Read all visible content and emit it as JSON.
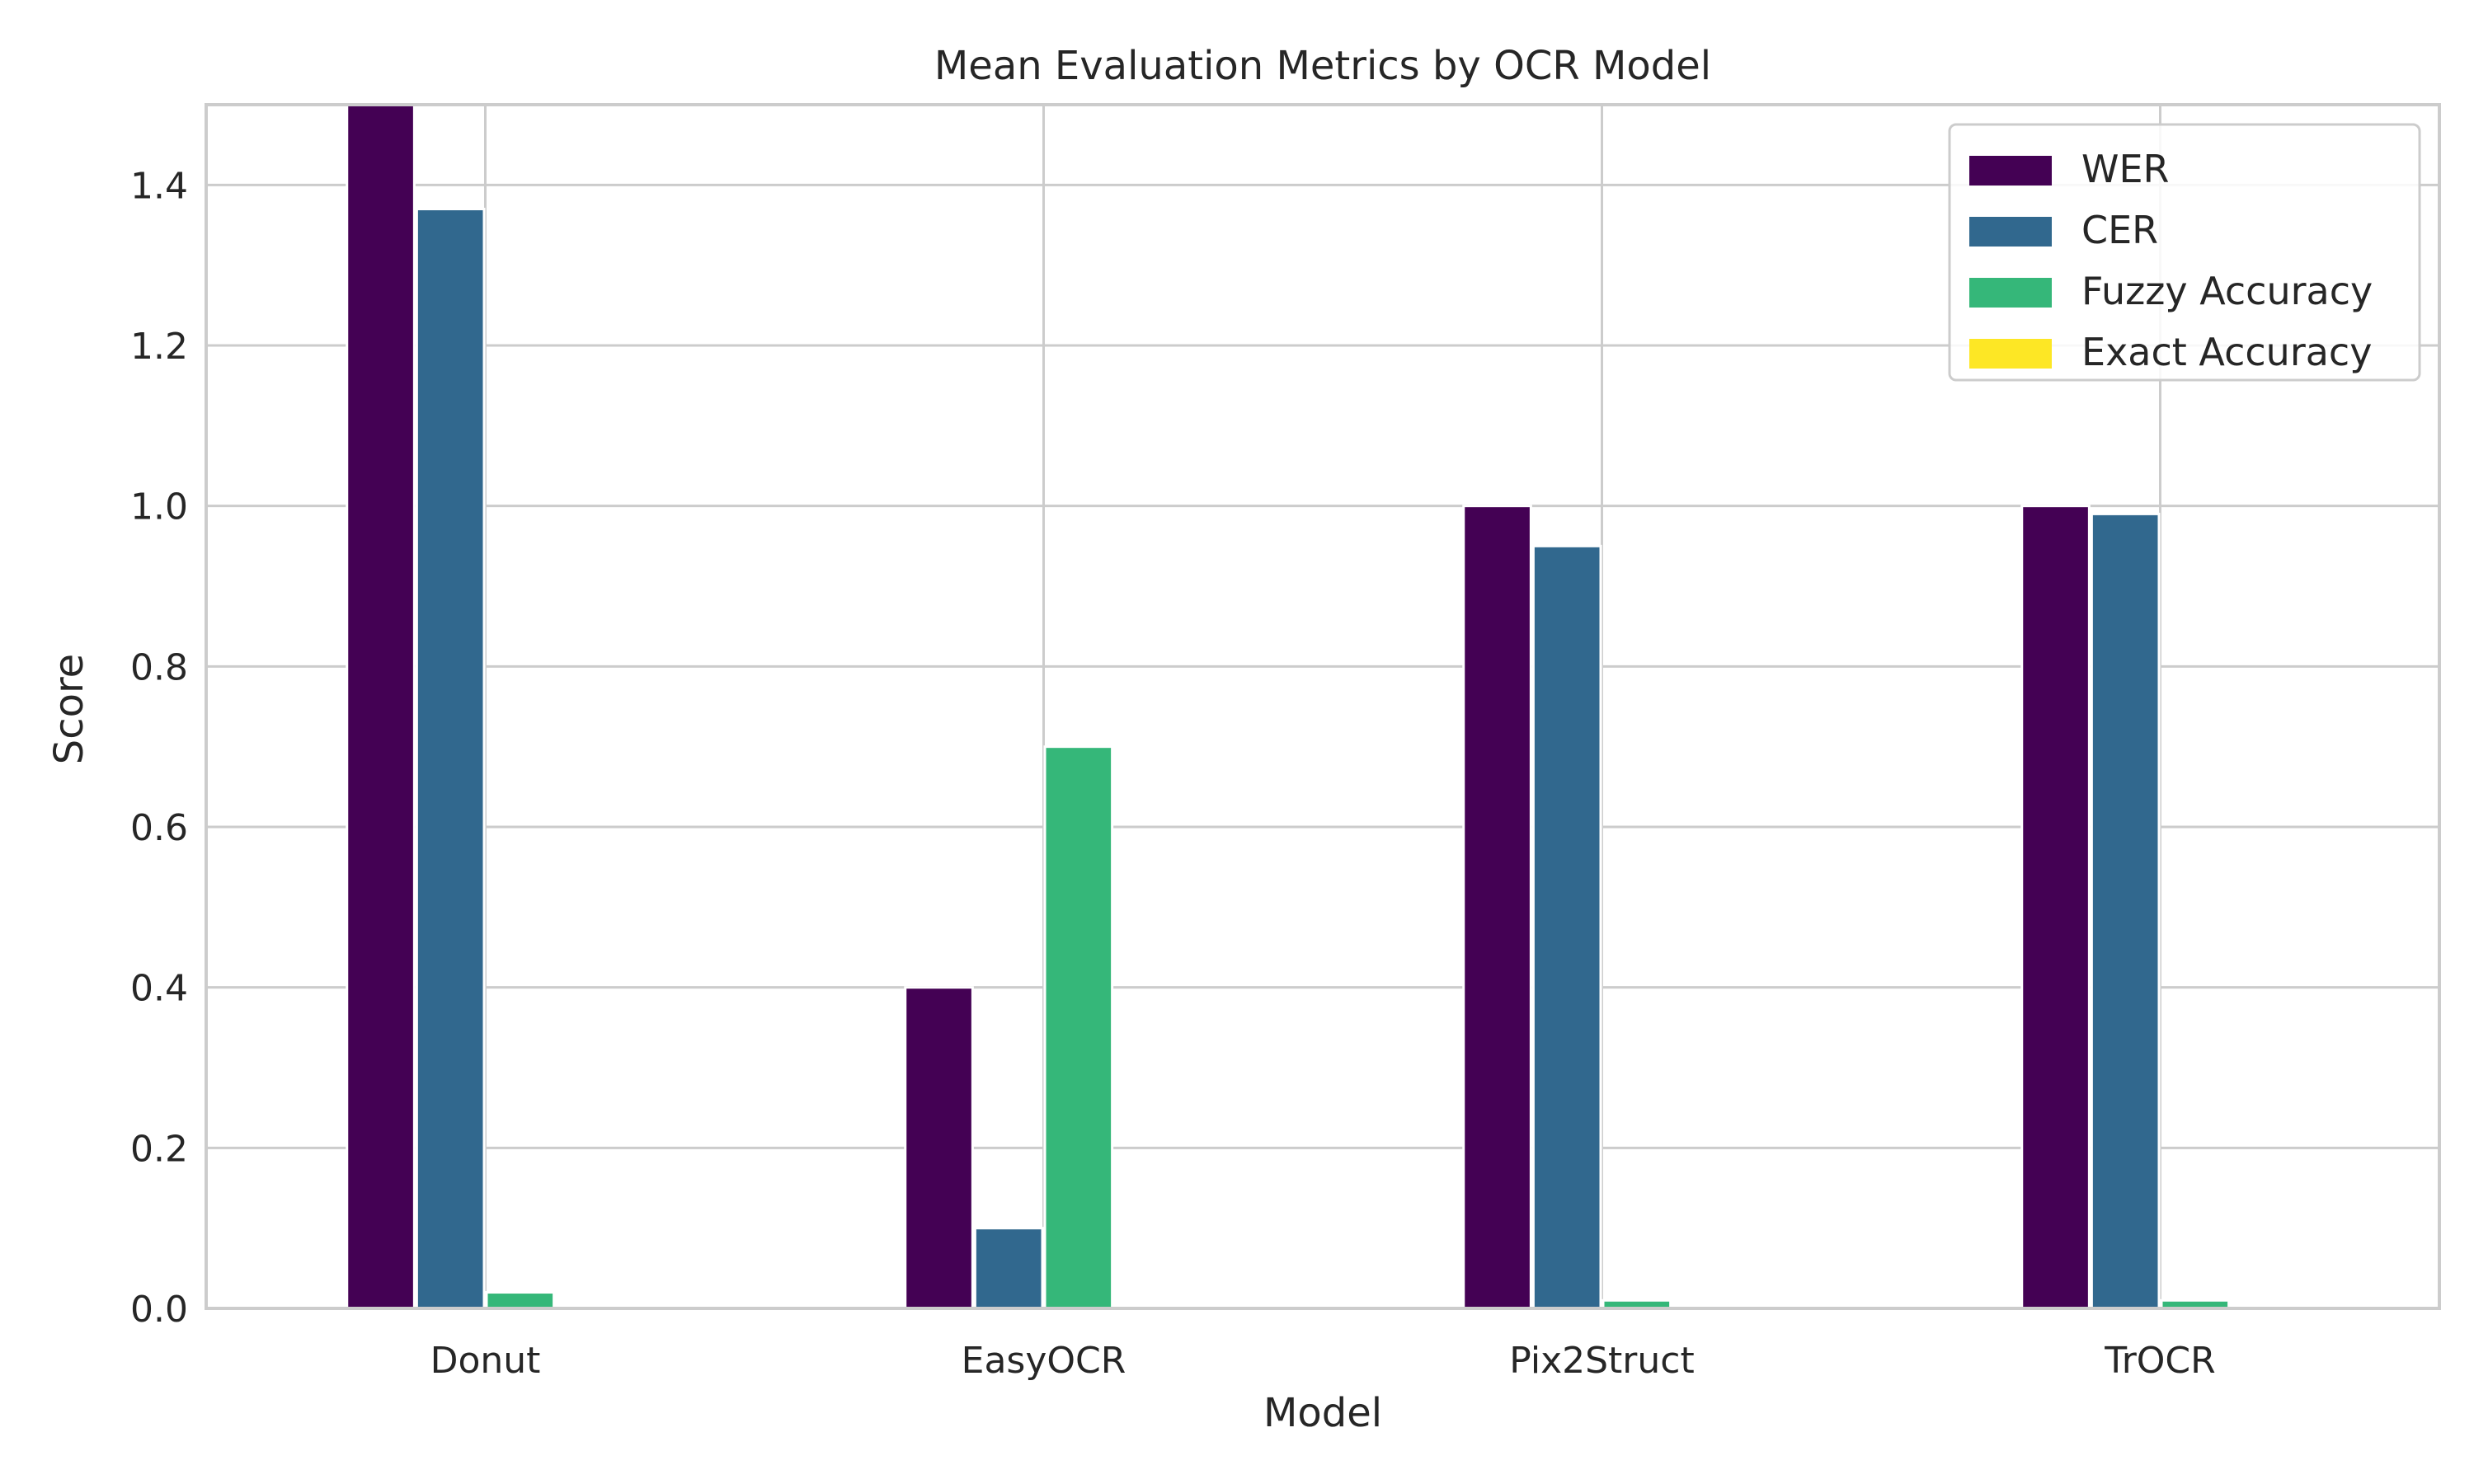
{
  "chart_data": {
    "type": "bar",
    "title": "Mean Evaluation Metrics by OCR Model",
    "xlabel": "Model",
    "ylabel": "Score",
    "categories": [
      "Donut",
      "EasyOCR",
      "Pix2Struct",
      "TrOCR"
    ],
    "series": [
      {
        "name": "WER",
        "color": "#440154",
        "values": [
          1.5,
          0.4,
          1.0,
          1.0
        ]
      },
      {
        "name": "CER",
        "color": "#31688e",
        "values": [
          1.37,
          0.1,
          0.95,
          0.99
        ]
      },
      {
        "name": "Fuzzy Accuracy",
        "color": "#35b779",
        "values": [
          0.02,
          0.7,
          0.01,
          0.01
        ]
      },
      {
        "name": "Exact Accuracy",
        "color": "#fde725",
        "values": [
          0.0,
          0.0,
          0.0,
          0.0
        ]
      }
    ],
    "ylim": [
      0,
      1.5
    ],
    "yticks": [
      "0.0",
      "0.2",
      "0.4",
      "0.6",
      "0.8",
      "1.0",
      "1.2",
      "1.4"
    ],
    "grid": true,
    "legend_position": "top-right"
  }
}
